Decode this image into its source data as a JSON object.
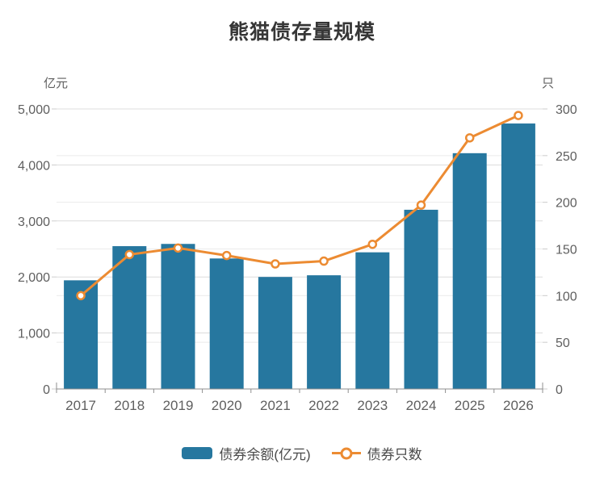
{
  "title": "熊猫债存量规模",
  "axes": {
    "left_unit": "亿元",
    "right_unit": "只"
  },
  "legend": {
    "bar_label": "债券余额(亿元)",
    "line_label": "债券只数"
  },
  "colors": {
    "bar": "#26779f",
    "line": "#ec8b32",
    "marker_fill": "#ffffff",
    "grid_left": "#dcdcdc",
    "grid_right": "#ebebeb",
    "axis_line": "#8f8f8f",
    "tick_mark": "#cccccc",
    "tick_label": "#5f5f5f"
  },
  "chart_data": {
    "type": "bar",
    "title": "熊猫债存量规模",
    "categories": [
      "2017",
      "2018",
      "2019",
      "2020",
      "2021",
      "2022",
      "2023",
      "2024",
      "2025",
      "2026"
    ],
    "series": [
      {
        "name": "债券余额(亿元)",
        "type": "bar",
        "axis": "left",
        "values": [
          1940,
          2550,
          2590,
          2330,
          2000,
          2030,
          2440,
          3200,
          4210,
          4740
        ]
      },
      {
        "name": "债券只数",
        "type": "line",
        "axis": "right",
        "values": [
          100,
          144,
          151,
          143,
          134,
          137,
          155,
          197,
          269,
          293
        ]
      }
    ],
    "left_axis": {
      "label": "亿元",
      "min": 0,
      "max": 5000,
      "step": 1000
    },
    "right_axis": {
      "label": "只",
      "min": 0,
      "max": 300,
      "step": 50
    },
    "grid": true,
    "legend_position": "bottom"
  }
}
